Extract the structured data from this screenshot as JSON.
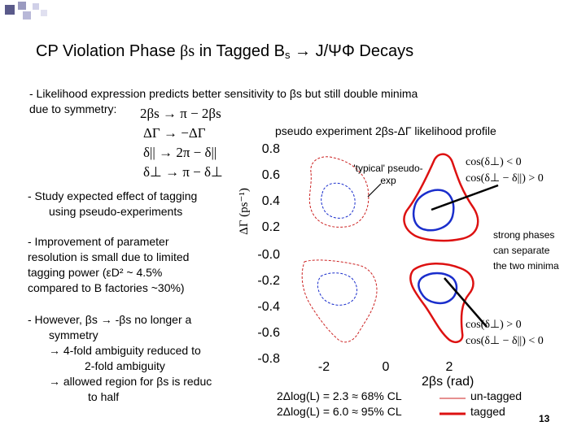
{
  "slide": {
    "title_main": "CP Violation Phase ",
    "title_beta": "βs",
    "title_rest": " in Tagged B",
    "title_sub": "s",
    "title_end": " → J/ΨΦ Decays",
    "bullet1_line1": "- Likelihood expression predicts better sensitivity to  βs but still double minima",
    "bullet1_line2": "due to symmetry:",
    "symmetry_eqs": [
      "2βs → π − 2βs",
      "ΔΓ → −ΔΓ",
      "δ|| → 2π − δ||",
      "δ⊥ → π − δ⊥"
    ],
    "bullet2": [
      "- Study expected effect of tagging",
      "using pseudo-experiments"
    ],
    "bullet3": [
      "- Improvement of parameter",
      "resolution is small due to limited",
      "tagging power (εD² ~ 4.5%",
      "compared to B factories ~30%)"
    ],
    "bullet4": [
      "- However,  βs → -βs no longer a",
      "symmetry",
      "→ 4-fold ambiguity reduced to",
      "2-fold ambiguity",
      "→ allowed region for  βs is reduc",
      "to half"
    ],
    "page_number": "13"
  },
  "plot": {
    "title": "pseudo experiment 2βs-ΔΓ likelihood profile",
    "ylabel": "ΔΓ (ps⁻¹)",
    "xlabel": "2βs (rad)",
    "y_ticks": [
      "0.8",
      "0.6",
      "0.4",
      "0.2",
      "-0.0",
      "-0.2",
      "-0.4",
      "-0.6",
      "-0.8"
    ],
    "x_ticks": [
      "-2",
      "0",
      "2"
    ],
    "typical_label": "'typical' pseudo-exp",
    "strong_phases_label": [
      "strong phases",
      "can separate",
      "the two minima"
    ],
    "cos_upper": [
      "cos(δ⊥) < 0",
      "cos(δ⊥ − δ||) > 0"
    ],
    "cos_lower": [
      "cos(δ⊥) > 0",
      "cos(δ⊥ − δ||) < 0"
    ],
    "legend_cl": [
      "2Δlog(L) = 2.3 ≈ 68% CL",
      "2Δlog(L) = 6.0 ≈ 95% CL"
    ],
    "legend_tag": [
      "un-tagged",
      "tagged"
    ],
    "colors": {
      "untagged": "#cc2222",
      "tagged": "#dd1111",
      "blue": "#1a2ecc"
    }
  }
}
